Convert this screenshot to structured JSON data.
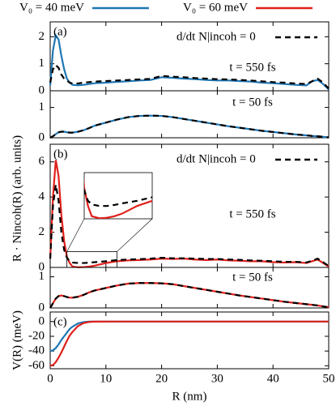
{
  "chart_data": [
    {
      "type": "line",
      "panel_label": "(a)",
      "time_label": "t = 550 fs",
      "x": [
        0,
        0.5,
        1,
        1.5,
        2,
        2.5,
        3,
        3.5,
        4,
        5,
        6,
        7,
        8,
        10,
        12,
        14,
        16,
        18,
        20,
        22,
        24,
        26,
        28,
        30,
        32,
        34,
        36,
        38,
        40,
        42,
        44,
        46,
        47,
        48,
        49,
        50
      ],
      "xlim": [
        0,
        50
      ],
      "ylim": [
        0,
        2.55
      ],
      "yticks": [
        0,
        1,
        2
      ],
      "series": [
        {
          "name": "V₀ = 40 meV",
          "color": "#1f77b4",
          "dash": false,
          "legend": "figure-top",
          "values": [
            0.2,
            1.5,
            2.05,
            1.9,
            1.3,
            0.8,
            0.45,
            0.3,
            0.22,
            0.2,
            0.22,
            0.25,
            0.28,
            0.3,
            0.33,
            0.35,
            0.38,
            0.4,
            0.5,
            0.48,
            0.45,
            0.43,
            0.4,
            0.38,
            0.38,
            0.36,
            0.34,
            0.3,
            0.28,
            0.25,
            0.22,
            0.2,
            0.35,
            0.4,
            0.25,
            0.05
          ]
        },
        {
          "name": "d/dt N|incoh = 0",
          "color": "#000000",
          "dash": true,
          "legend": "upper right",
          "values": [
            0.3,
            0.8,
            0.95,
            0.85,
            0.6,
            0.45,
            0.38,
            0.3,
            0.27,
            0.27,
            0.3,
            0.32,
            0.34,
            0.36,
            0.38,
            0.4,
            0.42,
            0.44,
            0.55,
            0.52,
            0.5,
            0.47,
            0.45,
            0.43,
            0.42,
            0.4,
            0.38,
            0.35,
            0.32,
            0.3,
            0.27,
            0.25,
            0.35,
            0.45,
            0.3,
            0.08
          ]
        }
      ]
    },
    {
      "type": "line",
      "time_label": "t = 50 fs",
      "x": [
        0,
        0.5,
        1,
        1.5,
        2,
        2.5,
        3,
        3.5,
        4,
        5,
        6,
        7,
        8,
        10,
        12,
        14,
        16,
        18,
        20,
        22,
        24,
        26,
        28,
        30,
        32,
        34,
        36,
        38,
        40,
        42,
        44,
        46,
        47,
        48,
        49,
        50
      ],
      "xlim": [
        0,
        50
      ],
      "ylim": [
        0,
        1.55
      ],
      "yticks": [
        0,
        1
      ],
      "series": [
        {
          "color": "#1f77b4",
          "dash": false,
          "values": [
            0,
            0.05,
            0.12,
            0.18,
            0.2,
            0.2,
            0.18,
            0.17,
            0.17,
            0.2,
            0.25,
            0.32,
            0.4,
            0.5,
            0.6,
            0.68,
            0.72,
            0.73,
            0.72,
            0.68,
            0.62,
            0.56,
            0.5,
            0.44,
            0.38,
            0.33,
            0.28,
            0.23,
            0.19,
            0.15,
            0.11,
            0.08,
            0.06,
            0.05,
            0.03,
            0.01
          ]
        },
        {
          "color": "#000000",
          "dash": true,
          "values": [
            0,
            0.05,
            0.12,
            0.18,
            0.2,
            0.2,
            0.18,
            0.17,
            0.17,
            0.2,
            0.25,
            0.32,
            0.4,
            0.5,
            0.6,
            0.68,
            0.72,
            0.73,
            0.72,
            0.68,
            0.62,
            0.56,
            0.5,
            0.44,
            0.38,
            0.33,
            0.28,
            0.23,
            0.19,
            0.15,
            0.11,
            0.08,
            0.06,
            0.05,
            0.03,
            0.01
          ]
        }
      ]
    },
    {
      "type": "line",
      "panel_label": "(b)",
      "time_label": "t = 550 fs",
      "y_label": "R · Nincoh(R) (arb. units)",
      "x": [
        0,
        0.5,
        1,
        1.5,
        2,
        2.5,
        3,
        3.5,
        4,
        5,
        6,
        7,
        8,
        10,
        12,
        14,
        16,
        18,
        20,
        22,
        24,
        26,
        28,
        30,
        32,
        34,
        36,
        38,
        40,
        42,
        44,
        46,
        47,
        48,
        49,
        50
      ],
      "xlim": [
        0,
        50
      ],
      "ylim": [
        0,
        7
      ],
      "yticks": [
        0,
        2,
        4,
        6
      ],
      "inset": {
        "xlim": [
          3,
          12
        ],
        "ylim": [
          0,
          0.9
        ]
      },
      "series": [
        {
          "name": "V₀ = 60 meV",
          "color": "#e0201b",
          "dash": false,
          "legend": "figure-top",
          "values": [
            0.5,
            4,
            6.1,
            5.2,
            3,
            1.5,
            0.6,
            0.25,
            0.05,
            0.01,
            0.02,
            0.05,
            0.1,
            0.25,
            0.35,
            0.4,
            0.42,
            0.45,
            0.5,
            0.48,
            0.5,
            0.45,
            0.42,
            0.45,
            0.4,
            0.38,
            0.35,
            0.35,
            0.3,
            0.28,
            0.3,
            0.25,
            0.35,
            0.45,
            0.25,
            0.05
          ]
        },
        {
          "name": "d/dt N|incoh = 0",
          "color": "#000000",
          "dash": true,
          "legend": "upper right",
          "values": [
            0.5,
            3.5,
            4.7,
            3.8,
            2,
            1,
            0.55,
            0.35,
            0.28,
            0.25,
            0.25,
            0.27,
            0.3,
            0.35,
            0.42,
            0.45,
            0.47,
            0.5,
            0.55,
            0.52,
            0.52,
            0.5,
            0.48,
            0.48,
            0.45,
            0.43,
            0.4,
            0.38,
            0.35,
            0.32,
            0.32,
            0.28,
            0.38,
            0.5,
            0.3,
            0.08
          ]
        }
      ]
    },
    {
      "type": "line",
      "time_label": "t = 50 fs",
      "x": [
        0,
        0.5,
        1,
        1.5,
        2,
        2.5,
        3,
        3.5,
        4,
        5,
        6,
        7,
        8,
        10,
        12,
        14,
        16,
        18,
        20,
        22,
        24,
        26,
        28,
        30,
        32,
        34,
        36,
        38,
        40,
        42,
        44,
        46,
        47,
        48,
        49,
        50
      ],
      "xlim": [
        0,
        50
      ],
      "ylim": [
        0,
        1.3
      ],
      "yticks": [
        0,
        1
      ],
      "series": [
        {
          "color": "#e0201b",
          "dash": false,
          "values": [
            0,
            0.15,
            0.3,
            0.38,
            0.4,
            0.38,
            0.35,
            0.33,
            0.33,
            0.36,
            0.42,
            0.5,
            0.56,
            0.64,
            0.72,
            0.78,
            0.8,
            0.8,
            0.79,
            0.76,
            0.7,
            0.64,
            0.58,
            0.52,
            0.46,
            0.4,
            0.35,
            0.3,
            0.25,
            0.2,
            0.16,
            0.12,
            0.1,
            0.08,
            0.05,
            0.02
          ]
        },
        {
          "color": "#000000",
          "dash": true,
          "values": [
            0,
            0.15,
            0.3,
            0.38,
            0.4,
            0.38,
            0.35,
            0.33,
            0.33,
            0.36,
            0.42,
            0.5,
            0.56,
            0.64,
            0.72,
            0.78,
            0.8,
            0.8,
            0.79,
            0.76,
            0.7,
            0.64,
            0.58,
            0.52,
            0.46,
            0.4,
            0.35,
            0.3,
            0.25,
            0.2,
            0.16,
            0.12,
            0.1,
            0.08,
            0.05,
            0.02
          ]
        }
      ]
    },
    {
      "type": "line",
      "panel_label": "(c)",
      "y_label": "V(R) (meV)",
      "x_label": "R (nm)",
      "x": [
        0,
        0.5,
        1,
        1.5,
        2,
        2.5,
        3,
        3.5,
        4,
        5,
        6,
        7,
        8,
        10,
        12,
        14,
        16,
        18,
        20,
        22,
        24,
        26,
        28,
        30,
        32,
        34,
        36,
        38,
        40,
        42,
        44,
        46,
        47,
        48,
        49,
        50
      ],
      "xlim": [
        0,
        50
      ],
      "xticks": [
        0,
        10,
        20,
        30,
        40,
        50
      ],
      "ylim": [
        -64,
        13
      ],
      "yticks": [
        0,
        -20,
        -40,
        -60
      ],
      "series": [
        {
          "color": "#1f77b4",
          "dash": false,
          "values": [
            -40,
            -39,
            -36,
            -31,
            -25,
            -20,
            -15,
            -10,
            -7,
            -2.5,
            -0.7,
            -0.1,
            0,
            0,
            0,
            0,
            0,
            0,
            0,
            0,
            0,
            0,
            0,
            0,
            0,
            0,
            0,
            0,
            0,
            0,
            0,
            0,
            0,
            0,
            0,
            0
          ]
        },
        {
          "color": "#e0201b",
          "dash": false,
          "values": [
            -60,
            -59,
            -55,
            -49,
            -42,
            -34,
            -26,
            -19,
            -14,
            -6,
            -2,
            -0.5,
            -0.1,
            0,
            0,
            0,
            0,
            0,
            0,
            0,
            0,
            0,
            0,
            0,
            0,
            0,
            0,
            0,
            0,
            0,
            0,
            0,
            0,
            0,
            0,
            0
          ]
        }
      ]
    }
  ]
}
